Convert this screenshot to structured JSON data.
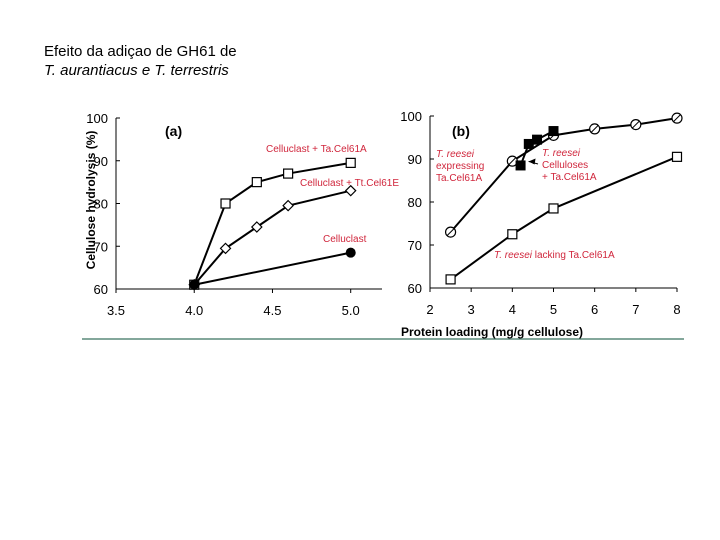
{
  "slide": {
    "title_line1": "Efeito da adiçao de GH61 de",
    "title_line2": "T. aurantiacus e T. terrestris"
  },
  "chart_data": [
    {
      "type": "line",
      "panel_label": "(a)",
      "ylabel": "Cellulose hydrolysis (%)",
      "xlabel": "Protein loading (mg/g cellulose)",
      "xlim": [
        3.5,
        5.2
      ],
      "ylim": [
        60,
        100
      ],
      "x_ticks": [
        "3.5",
        "4.0",
        "4.5",
        "5.0"
      ],
      "y_ticks": [
        "60",
        "70",
        "80",
        "90",
        "100"
      ],
      "series": [
        {
          "name": "Celluclast + Ta.Cel61A",
          "marker": "square-open",
          "color": "#000000",
          "label_color": "#d0263c",
          "x": [
            4.0,
            4.2,
            4.4,
            4.6,
            5.0
          ],
          "y": [
            61,
            80,
            85,
            87,
            89.5
          ]
        },
        {
          "name": "Celluclast + Tt.Cel61E",
          "marker": "diamond-open",
          "color": "#000000",
          "label_color": "#d0263c",
          "x": [
            4.0,
            4.2,
            4.4,
            4.6,
            5.0
          ],
          "y": [
            61,
            69.5,
            74.5,
            79.5,
            83
          ]
        },
        {
          "name": "Celluclast",
          "marker": "circle-filled",
          "color": "#000000",
          "label_color": "#d0263c",
          "x": [
            4.0,
            5.0
          ],
          "y": [
            61,
            68.5
          ]
        }
      ]
    },
    {
      "type": "line",
      "panel_label": "(b)",
      "xlim": [
        2,
        8
      ],
      "ylim": [
        60,
        100
      ],
      "x_ticks": [
        "2",
        "3",
        "4",
        "5",
        "6",
        "7",
        "8"
      ],
      "y_ticks": [
        "60",
        "70",
        "80",
        "90",
        "100"
      ],
      "series": [
        {
          "name": "T. reesei expressing Ta.Cel61A",
          "marker": "circle-open",
          "color": "#000000",
          "label_color": "#d0263c",
          "label_lines": [
            "T. reesei",
            "expressing",
            "Ta.Cel61A"
          ],
          "x": [
            2.5,
            4.0,
            5.0,
            6.0,
            7.0,
            8.0
          ],
          "y": [
            73,
            89.5,
            95.5,
            97,
            98,
            99.5
          ]
        },
        {
          "name": "T. reesei Celluloses + Ta.Cel61A",
          "marker": "square-filled",
          "color": "#000000",
          "label_color": "#d0263c",
          "label_lines": [
            "T. reesei",
            "Celluloses",
            "+ Ta.Cel61A"
          ],
          "x": [
            4.2,
            4.4,
            4.6,
            5.0
          ],
          "y": [
            88.5,
            93.5,
            94.5,
            96.5
          ]
        },
        {
          "name": "T. reesei lacking Ta.Cel61A",
          "marker": "square-open",
          "color": "#000000",
          "label_color": "#d0263c",
          "x": [
            2.5,
            4.0,
            5.0,
            8.0
          ],
          "y": [
            62,
            72.5,
            78.5,
            90.5
          ]
        }
      ]
    }
  ]
}
